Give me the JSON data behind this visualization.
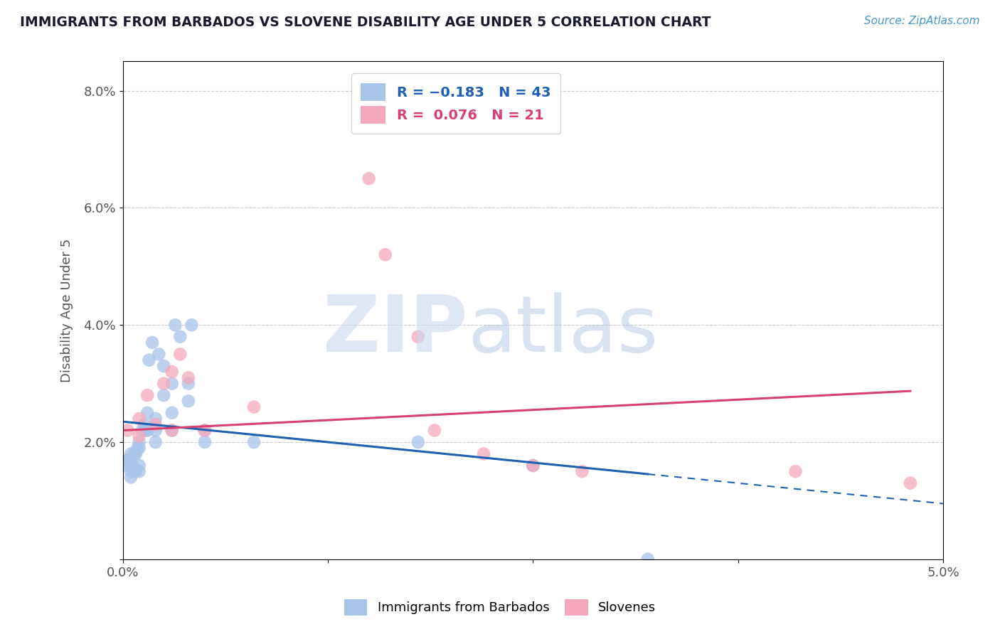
{
  "title": "IMMIGRANTS FROM BARBADOS VS SLOVENE DISABILITY AGE UNDER 5 CORRELATION CHART",
  "source": "Source: ZipAtlas.com",
  "ylabel": "Disability Age Under 5",
  "xlim": [
    0.0,
    0.05
  ],
  "ylim": [
    0.0,
    0.085
  ],
  "blue_R": -0.183,
  "blue_N": 43,
  "pink_R": 0.076,
  "pink_N": 21,
  "blue_color": "#a8c4e8",
  "pink_color": "#f5a8bc",
  "blue_line_color": "#2060b0",
  "pink_line_color": "#d84070",
  "legend_label_blue": "Immigrants from Barbados",
  "legend_label_pink": "Slovenes",
  "blue_scatter_x": [
    0.0003,
    0.0003,
    0.0004,
    0.0005,
    0.0005,
    0.0005,
    0.0005,
    0.0006,
    0.0007,
    0.0008,
    0.0008,
    0.0009,
    0.001,
    0.001,
    0.001,
    0.001,
    0.0012,
    0.0013,
    0.0014,
    0.0015,
    0.0015,
    0.0016,
    0.0018,
    0.002,
    0.002,
    0.002,
    0.0022,
    0.0025,
    0.0025,
    0.003,
    0.003,
    0.003,
    0.0032,
    0.0035,
    0.004,
    0.004,
    0.0042,
    0.005,
    0.005,
    0.008,
    0.018,
    0.025,
    0.032
  ],
  "blue_scatter_y": [
    0.017,
    0.016,
    0.017,
    0.018,
    0.016,
    0.015,
    0.014,
    0.016,
    0.018,
    0.018,
    0.015,
    0.019,
    0.02,
    0.019,
    0.016,
    0.015,
    0.022,
    0.023,
    0.022,
    0.025,
    0.022,
    0.034,
    0.037,
    0.024,
    0.022,
    0.02,
    0.035,
    0.033,
    0.028,
    0.03,
    0.025,
    0.022,
    0.04,
    0.038,
    0.03,
    0.027,
    0.04,
    0.02,
    0.022,
    0.02,
    0.02,
    0.016,
    0.0
  ],
  "pink_scatter_x": [
    0.0003,
    0.001,
    0.001,
    0.0015,
    0.002,
    0.0025,
    0.003,
    0.003,
    0.0035,
    0.004,
    0.005,
    0.008,
    0.015,
    0.016,
    0.018,
    0.019,
    0.022,
    0.025,
    0.028,
    0.041,
    0.048
  ],
  "pink_scatter_y": [
    0.022,
    0.024,
    0.021,
    0.028,
    0.023,
    0.03,
    0.032,
    0.022,
    0.035,
    0.031,
    0.022,
    0.026,
    0.065,
    0.052,
    0.038,
    0.022,
    0.018,
    0.016,
    0.015,
    0.015,
    0.013
  ],
  "blue_trend_x": [
    0.0,
    0.032,
    0.05
  ],
  "blue_trend_y_intercept": 0.0235,
  "blue_trend_slope": -0.28,
  "pink_trend_x": [
    0.0,
    0.048
  ],
  "pink_trend_y_intercept": 0.022,
  "pink_trend_slope": 0.14
}
